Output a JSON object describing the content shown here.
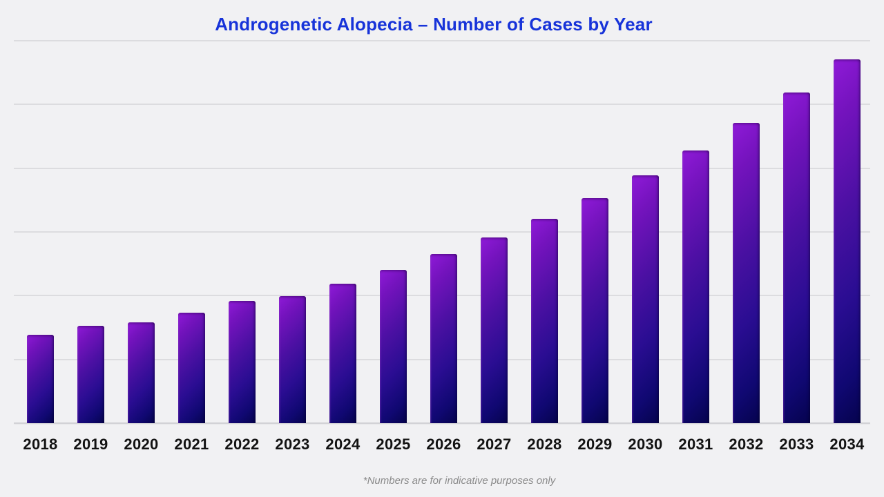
{
  "title": {
    "text": "Androgenetic Alopecia – Number of Cases by Year",
    "color": "#1733d9"
  },
  "footnote": {
    "text": "*Numbers are for indicative purposes only",
    "color": "#8a8a8a"
  },
  "chart_data": {
    "type": "bar",
    "title": "Androgenetic Alopecia – Number of Cases by Year",
    "categories": [
      "2018",
      "2019",
      "2020",
      "2021",
      "2022",
      "2023",
      "2024",
      "2025",
      "2026",
      "2027",
      "2028",
      "2029",
      "2030",
      "2031",
      "2032",
      "2033",
      "2034"
    ],
    "values": [
      128,
      141,
      146,
      160,
      177,
      184,
      202,
      222,
      245,
      269,
      296,
      326,
      359,
      395,
      435,
      479,
      527
    ],
    "unit": "indicative relative units (y-axis has no tick labels)",
    "xlabel": "",
    "ylabel": "",
    "ylim": [
      0,
      554
    ],
    "grid": "horizontal",
    "gridline_count_above_baseline": 6,
    "legend": "none",
    "colors": {
      "bar_gradient_top_left": "#8f1ad8",
      "bar_gradient_mid": "#3b0f9a",
      "bar_gradient_bottom_right": "#05034d",
      "gridline": "#dcdcdf",
      "baseline": "#d2d2d6",
      "background": "#f1f1f3",
      "x_label": "#121212"
    }
  }
}
